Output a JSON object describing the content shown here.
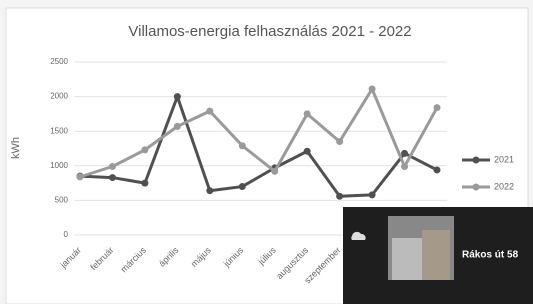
{
  "chart_data": {
    "type": "line",
    "title": "Villamos-energia felhasználás 2021 - 2022",
    "y_label": "kWh",
    "categories": [
      "január",
      "február",
      "március",
      "április",
      "május",
      "június",
      "július",
      "augusztus",
      "szeptember",
      null,
      null,
      null
    ],
    "series": [
      {
        "name": "2021",
        "color": "#505050",
        "values": [
          850,
          830,
          750,
          2000,
          640,
          700,
          970,
          1210,
          560,
          580,
          1180,
          940
        ]
      },
      {
        "name": "2022",
        "color": "#9a9a9a",
        "values": [
          840,
          990,
          1230,
          1570,
          1790,
          1290,
          920,
          1750,
          1350,
          2110,
          990,
          1840
        ]
      }
    ],
    "ylim": [
      0,
      2500
    ],
    "yticks": [
      0,
      500,
      1000,
      1500,
      2000,
      2500
    ],
    "grid": true,
    "legend": "right"
  },
  "overlay": {
    "label": "Rákos út 58"
  }
}
